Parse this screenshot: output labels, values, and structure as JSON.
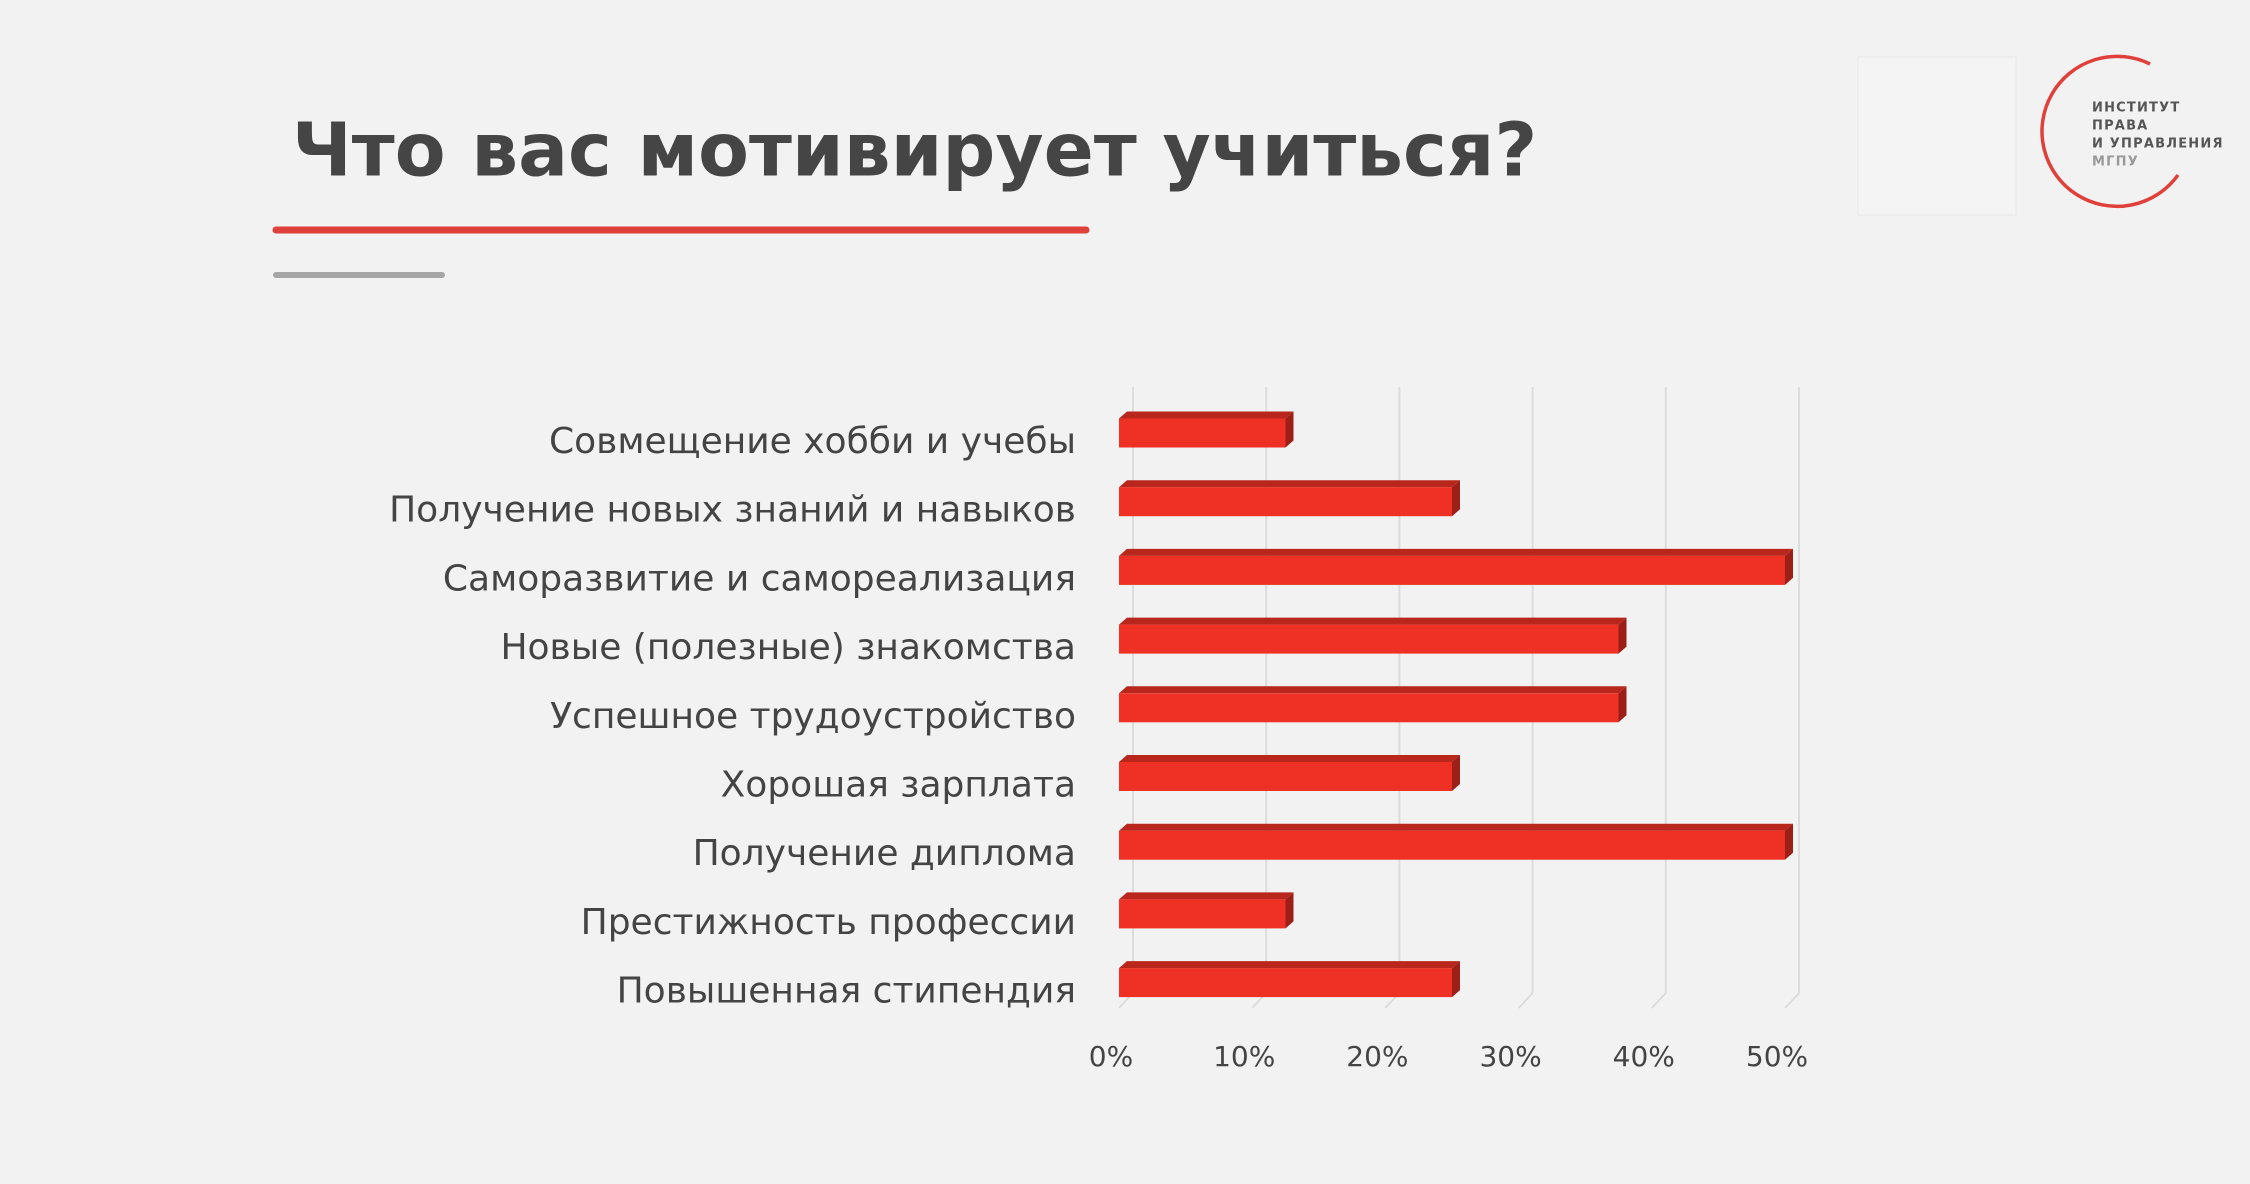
{
  "chart_data": {
    "type": "bar3d_horizontal",
    "title": "Что вас мотивирует учиться?",
    "categories": [
      "Совмещение хобби и учебы",
      "Получение новых знаний и навыков",
      "Саморазвитие и самореализация",
      "Новые (полезные) знакомства",
      "Успешное трудоустройство",
      "Хорошая зарплата",
      "Получение диплома",
      "Престижность профессии",
      "Повышенная стипендия"
    ],
    "values": [
      12.5,
      25,
      50,
      37.5,
      37.5,
      25,
      50,
      12.5,
      25
    ],
    "color": "#ee3124",
    "xlim": [
      0,
      50
    ],
    "xticks": [
      {
        "value": 0,
        "label": "0%"
      },
      {
        "value": 10,
        "label": "10%"
      },
      {
        "value": 20,
        "label": "20%"
      },
      {
        "value": 30,
        "label": "30%"
      },
      {
        "value": 40,
        "label": "40%"
      },
      {
        "value": 50,
        "label": "50%"
      }
    ],
    "grid": true
  },
  "logo": {
    "lines": [
      "ИНСТИТУТ",
      "ПРАВА",
      "И УПРАВЛЕНИЯ",
      "МГПУ"
    ]
  }
}
